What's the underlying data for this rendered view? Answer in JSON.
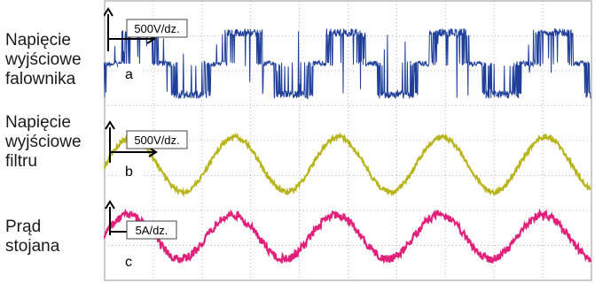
{
  "labels": {
    "a": [
      "Napięcie",
      "wyjściowe",
      "falownika"
    ],
    "b": [
      "Napięcie",
      "wyjściowe",
      "filtru"
    ],
    "c": [
      "Prąd",
      "stojana"
    ]
  },
  "chart_data": [
    {
      "type": "line",
      "id": "a",
      "name": "Napięcie wyjściowe falownika",
      "scale_label": "500V/dz.",
      "panel_letter": "a",
      "color": "#1f3f9a",
      "waveform": "pwm",
      "periods_visible": 4.7,
      "note": ""
    },
    {
      "type": "line",
      "id": "b",
      "name": "Napięcie wyjściowe filtru",
      "scale_label": "500V/dz.",
      "panel_letter": "b",
      "color": "#b8b41c",
      "waveform": "sine",
      "periods_visible": 4.7
    },
    {
      "type": "line",
      "id": "c",
      "name": "Prąd stojana",
      "scale_label": "5A/dz.",
      "panel_letter": "c",
      "color": "#e0207a",
      "waveform": "sine",
      "periods_visible": 4.7
    }
  ],
  "grid": {
    "on": true,
    "style": "dotted"
  }
}
